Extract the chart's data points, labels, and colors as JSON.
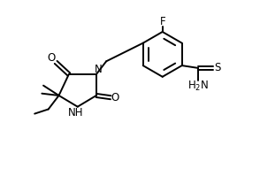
{
  "background_color": "#ffffff",
  "line_color": "#000000",
  "line_width": 1.4,
  "font_size": 8.5,
  "figsize": [
    2.94,
    1.99
  ],
  "dpi": 100,
  "xlim": [
    0,
    9.0
  ],
  "ylim": [
    0,
    7.0
  ]
}
